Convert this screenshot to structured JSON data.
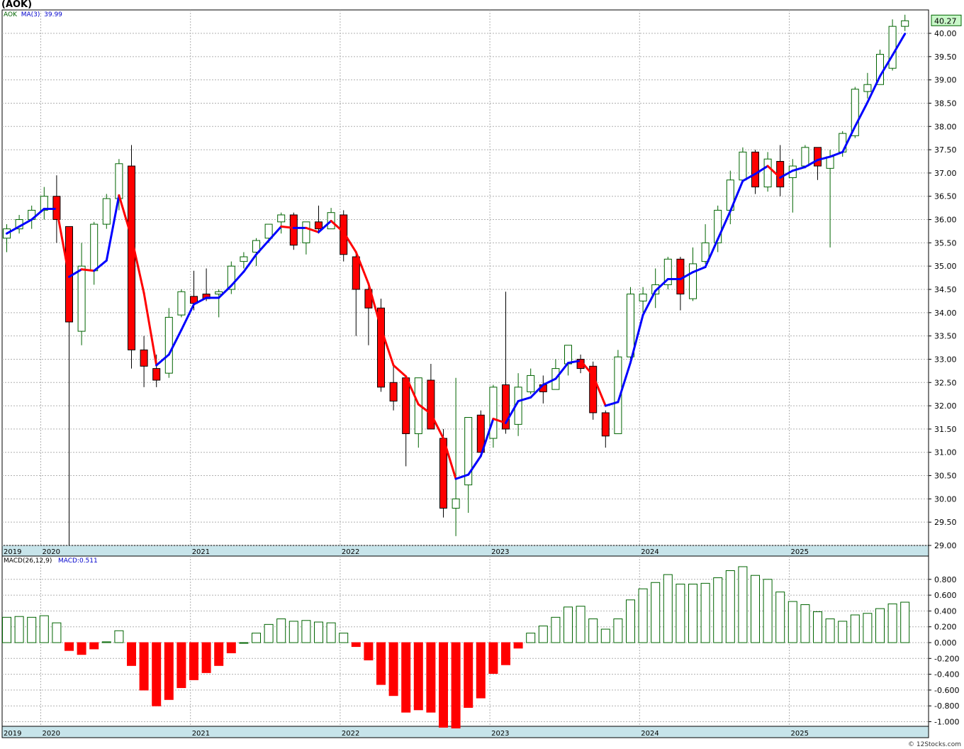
{
  "title": "(AOK)",
  "legend": {
    "price_symbol": "AOK",
    "ma_label": "MA(3)",
    "ma_value": "39.99",
    "macd_label": "MACD(26,12,9)",
    "macd_value": "MACD:0.511"
  },
  "last_price_badge": "40.27",
  "credit": "© 12Stocks.com",
  "colors": {
    "up_body": "#ffffff",
    "up_edge": "#006400",
    "down_body": "#ff0000",
    "ma_up": "#0000ff",
    "ma_down": "#ff0000",
    "macd_pos": "#006400",
    "macd_neg": "#ff0000",
    "axis_band": "#c7e4ea",
    "grid": "#b0b0b0",
    "badge_fill": "#c8f7c8"
  },
  "chart_data": [
    {
      "type": "candlestick",
      "interval": "monthly",
      "grid": true,
      "y_axis_side": "right",
      "ylim": [
        29.0,
        40.5
      ],
      "y_ticks": [
        "29.00",
        "29.50",
        "30.00",
        "30.50",
        "31.00",
        "31.50",
        "32.00",
        "32.50",
        "33.00",
        "33.50",
        "34.00",
        "34.50",
        "35.00",
        "35.50",
        "36.00",
        "36.50",
        "37.00",
        "37.50",
        "38.00",
        "38.50",
        "39.00",
        "39.50",
        "40.00"
      ],
      "x_tick_labels": [
        "2019",
        "2020",
        "2021",
        "2022",
        "2023",
        "2024",
        "2025"
      ],
      "x_tick_positions": [
        -1,
        3,
        15,
        27,
        39,
        51,
        63
      ],
      "ohlc": [
        [
          35.6,
          35.9,
          35.3,
          35.8
        ],
        [
          35.8,
          36.1,
          35.7,
          36.0
        ],
        [
          36.0,
          36.3,
          35.8,
          36.2
        ],
        [
          36.2,
          36.7,
          36.0,
          36.5
        ],
        [
          36.5,
          36.95,
          35.5,
          36.0
        ],
        [
          35.85,
          35.85,
          29.0,
          33.8
        ],
        [
          33.6,
          35.5,
          33.3,
          35.0
        ],
        [
          34.9,
          35.95,
          34.6,
          35.9
        ],
        [
          35.9,
          36.55,
          35.8,
          36.45
        ],
        [
          36.45,
          37.3,
          36.2,
          37.2
        ],
        [
          37.15,
          37.6,
          32.8,
          33.2
        ],
        [
          33.2,
          33.5,
          32.4,
          32.85
        ],
        [
          32.8,
          33.1,
          32.4,
          32.55
        ],
        [
          32.7,
          34.1,
          32.6,
          33.9
        ],
        [
          33.95,
          34.5,
          33.9,
          34.45
        ],
        [
          34.35,
          34.9,
          34.05,
          34.2
        ],
        [
          34.4,
          34.95,
          34.25,
          34.3
        ],
        [
          34.4,
          34.5,
          33.9,
          34.45
        ],
        [
          34.5,
          35.1,
          34.4,
          35.0
        ],
        [
          35.1,
          35.3,
          34.95,
          35.2
        ],
        [
          35.3,
          35.6,
          35.0,
          35.55
        ],
        [
          35.6,
          35.9,
          35.5,
          35.9
        ],
        [
          35.95,
          36.15,
          35.7,
          36.1
        ],
        [
          36.1,
          36.15,
          35.35,
          35.45
        ],
        [
          35.5,
          35.95,
          35.25,
          35.95
        ],
        [
          35.95,
          36.3,
          35.7,
          35.8
        ],
        [
          35.8,
          36.25,
          35.8,
          36.15
        ],
        [
          36.1,
          36.2,
          35.1,
          35.25
        ],
        [
          35.2,
          35.3,
          33.5,
          34.5
        ],
        [
          34.5,
          34.6,
          33.3,
          34.1
        ],
        [
          34.1,
          34.3,
          32.3,
          32.4
        ],
        [
          32.5,
          32.9,
          31.9,
          32.1
        ],
        [
          32.6,
          32.6,
          30.7,
          31.4
        ],
        [
          31.4,
          32.6,
          31.1,
          32.6
        ],
        [
          32.55,
          32.9,
          31.5,
          31.5
        ],
        [
          31.3,
          31.5,
          29.6,
          29.8
        ],
        [
          29.8,
          32.6,
          29.2,
          30.0
        ],
        [
          30.3,
          31.75,
          29.7,
          31.75
        ],
        [
          31.8,
          31.9,
          31.0,
          31.0
        ],
        [
          31.3,
          32.45,
          31.1,
          32.4
        ],
        [
          32.45,
          34.45,
          31.4,
          31.5
        ],
        [
          31.6,
          32.7,
          31.35,
          32.4
        ],
        [
          32.3,
          32.8,
          32.25,
          32.65
        ],
        [
          32.45,
          32.65,
          32.05,
          32.3
        ],
        [
          32.35,
          33.0,
          32.35,
          32.8
        ],
        [
          32.9,
          33.3,
          32.65,
          33.3
        ],
        [
          33.0,
          33.1,
          32.7,
          32.8
        ],
        [
          32.85,
          32.95,
          31.7,
          31.85
        ],
        [
          31.85,
          31.9,
          31.1,
          31.35
        ],
        [
          31.4,
          33.2,
          31.4,
          33.05
        ],
        [
          33.05,
          34.55,
          33.0,
          34.4
        ],
        [
          34.25,
          34.55,
          34.0,
          34.4
        ],
        [
          34.4,
          34.95,
          34.1,
          34.6
        ],
        [
          34.6,
          35.2,
          34.5,
          35.15
        ],
        [
          35.15,
          35.2,
          34.05,
          34.4
        ],
        [
          34.3,
          35.4,
          34.25,
          35.05
        ],
        [
          35.1,
          35.9,
          35.05,
          35.5
        ],
        [
          35.5,
          36.3,
          35.3,
          36.2
        ],
        [
          36.2,
          37.05,
          35.9,
          36.85
        ],
        [
          36.85,
          37.55,
          36.8,
          37.45
        ],
        [
          37.45,
          37.5,
          36.55,
          36.7
        ],
        [
          36.7,
          37.45,
          36.6,
          37.3
        ],
        [
          37.25,
          37.6,
          36.5,
          36.7
        ],
        [
          36.9,
          37.3,
          36.15,
          37.15
        ],
        [
          37.15,
          37.6,
          37.1,
          37.55
        ],
        [
          37.55,
          37.55,
          36.85,
          37.15
        ],
        [
          37.1,
          37.5,
          35.4,
          37.35
        ],
        [
          37.45,
          37.9,
          37.35,
          37.85
        ],
        [
          37.8,
          38.85,
          37.75,
          38.8
        ],
        [
          38.75,
          39.15,
          38.6,
          38.9
        ],
        [
          38.9,
          39.65,
          38.9,
          39.55
        ],
        [
          39.25,
          40.3,
          39.2,
          40.15
        ],
        [
          40.15,
          40.4,
          40.05,
          40.27
        ]
      ],
      "ma3": [
        35.7,
        35.85,
        36.0,
        36.23,
        36.23,
        34.77,
        34.93,
        34.9,
        35.12,
        36.52,
        35.62,
        34.42,
        32.87,
        33.1,
        33.63,
        34.18,
        34.32,
        34.32,
        34.58,
        34.88,
        35.25,
        35.55,
        35.85,
        35.82,
        35.82,
        35.73,
        35.97,
        35.73,
        35.3,
        34.62,
        33.67,
        32.87,
        32.63,
        32.03,
        31.83,
        31.3,
        30.43,
        30.52,
        30.92,
        31.72,
        31.63,
        32.1,
        32.18,
        32.45,
        32.58,
        32.92,
        32.97,
        32.65,
        32.0,
        32.08,
        32.93,
        33.95,
        34.47,
        34.72,
        34.72,
        34.87,
        34.98,
        35.58,
        36.18,
        36.83,
        36.98,
        37.15,
        36.9,
        37.05,
        37.13,
        37.28,
        37.35,
        37.45,
        38.0,
        38.52,
        39.08,
        39.53,
        39.99
      ]
    },
    {
      "type": "bar",
      "name": "MACD(26,12,9)",
      "grid": true,
      "ylim": [
        -1.08,
        1.0
      ],
      "y_ticks": [
        "-1.000",
        "-0.800",
        "-0.600",
        "-0.400",
        "-0.200",
        "0.000",
        "0.200",
        "0.400",
        "0.600",
        "0.800"
      ],
      "x_tick_labels": [
        "2019",
        "2020",
        "2021",
        "2022",
        "2023",
        "2024",
        "2025"
      ],
      "values": [
        0.32,
        0.33,
        0.32,
        0.34,
        0.25,
        -0.1,
        -0.15,
        -0.08,
        0.01,
        0.15,
        -0.29,
        -0.6,
        -0.8,
        -0.72,
        -0.57,
        -0.47,
        -0.38,
        -0.29,
        -0.13,
        0.0,
        0.12,
        0.23,
        0.3,
        0.27,
        0.28,
        0.26,
        0.25,
        0.12,
        -0.05,
        -0.22,
        -0.53,
        -0.67,
        -0.88,
        -0.85,
        -0.88,
        -1.07,
        -1.08,
        -0.82,
        -0.7,
        -0.39,
        -0.28,
        -0.07,
        0.12,
        0.21,
        0.32,
        0.45,
        0.46,
        0.3,
        0.17,
        0.3,
        0.54,
        0.68,
        0.76,
        0.86,
        0.74,
        0.74,
        0.75,
        0.82,
        0.91,
        0.96,
        0.85,
        0.8,
        0.64,
        0.52,
        0.48,
        0.39,
        0.3,
        0.27,
        0.35,
        0.37,
        0.43,
        0.49,
        0.511
      ]
    }
  ]
}
